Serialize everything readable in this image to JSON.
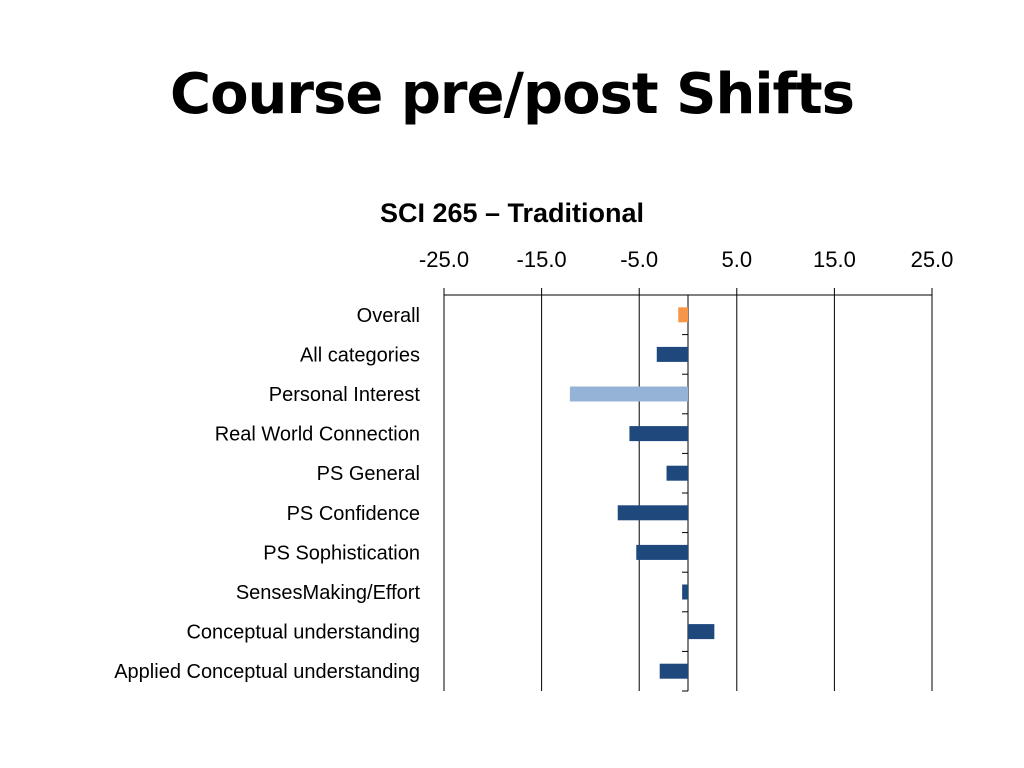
{
  "slide": {
    "title": "Course pre/post Shifts"
  },
  "colors": {
    "series": "#1f497d",
    "highlight_overall": "#f79646",
    "highlight_personal_interest": "#95b3d7",
    "axis": "#000000"
  },
  "chart_data": {
    "type": "bar",
    "orientation": "horizontal",
    "title": "SCI 265 – Traditional",
    "xlabel": "",
    "ylabel": "",
    "xlim": [
      -25,
      25
    ],
    "xticks": [
      -25,
      -15,
      -5,
      5,
      15,
      25
    ],
    "xtick_labels": [
      "-25.0",
      "-15.0",
      "-5.0",
      "5.0",
      "15.0",
      "25.0"
    ],
    "x_axis_position": "top",
    "grid": "vertical",
    "legend": "none",
    "categories": [
      "Overall",
      "All categories",
      "Personal Interest",
      "Real World Connection",
      "PS General",
      "PS Confidence ",
      "PS Sophistication",
      "SensesMaking/Effort",
      "Conceptual understanding",
      "Applied Conceptual understanding"
    ],
    "values": [
      -1.0,
      -3.2,
      -12.1,
      -6.0,
      -2.2,
      -7.2,
      -5.3,
      -0.6,
      2.7,
      -2.9
    ],
    "bar_colors": [
      "#f79646",
      "#1f497d",
      "#95b3d7",
      "#1f497d",
      "#1f497d",
      "#1f497d",
      "#1f497d",
      "#1f497d",
      "#1f497d",
      "#1f497d"
    ]
  }
}
